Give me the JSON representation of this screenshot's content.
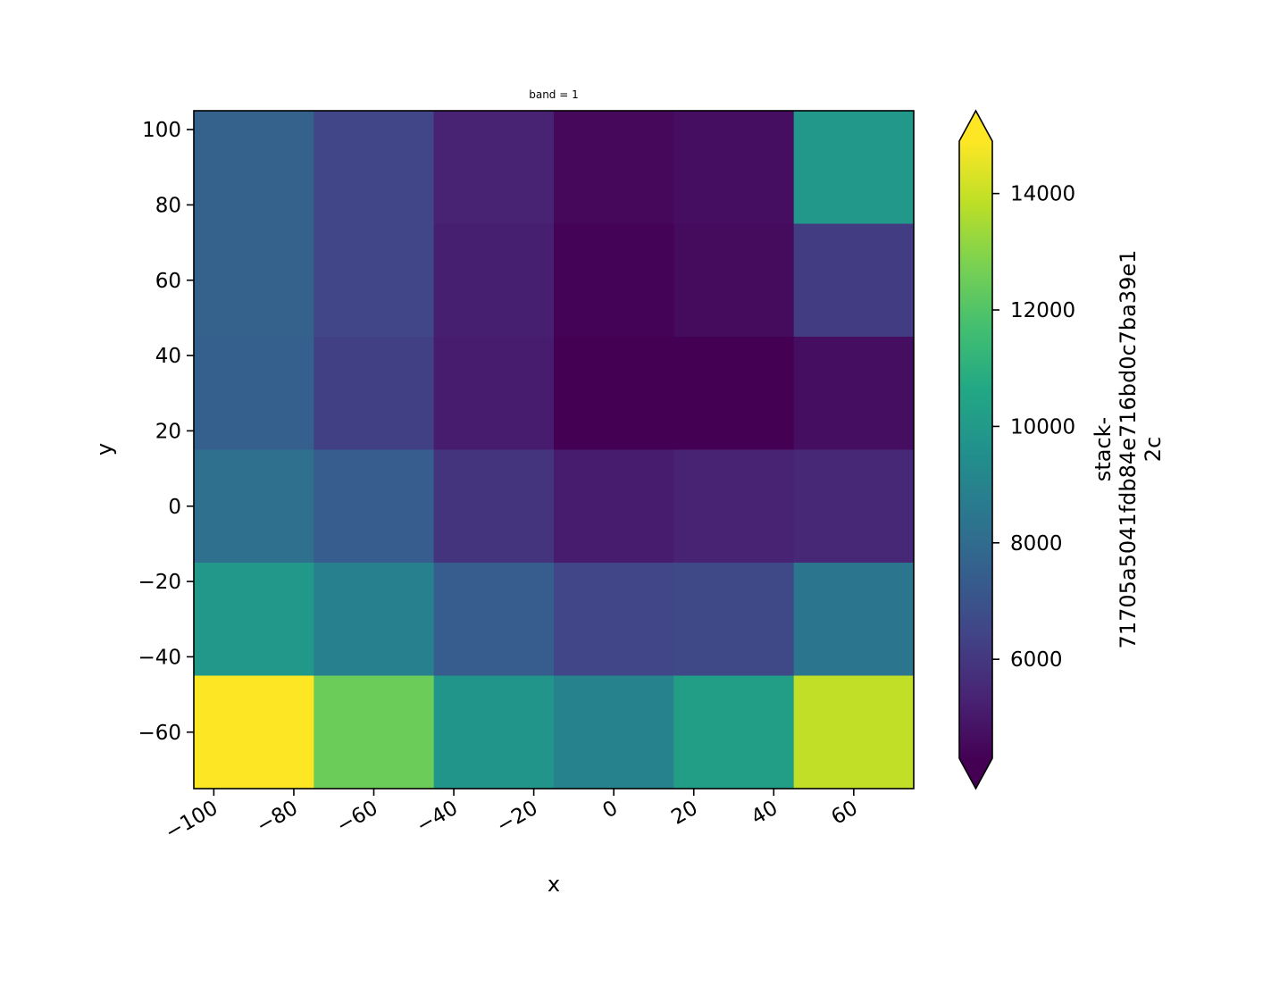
{
  "chart_data": {
    "type": "heatmap",
    "title": "band = 1",
    "xlabel": "x",
    "ylabel": "y",
    "x_centers": [
      -90,
      -60,
      -30,
      0,
      30,
      60
    ],
    "y_centers": [
      90,
      60,
      30,
      0,
      -30,
      -60
    ],
    "xlim": [
      -105,
      75
    ],
    "ylim": [
      -75,
      105
    ],
    "x_ticks": [
      -100,
      -80,
      -60,
      -40,
      -20,
      0,
      20,
      40,
      60
    ],
    "y_ticks": [
      100,
      80,
      60,
      40,
      20,
      0,
      -20,
      -40,
      -60
    ],
    "x_tick_labels": [
      "−100",
      "−80",
      "−60",
      "−40",
      "−20",
      "0",
      "20",
      "40",
      "60"
    ],
    "y_tick_labels": [
      "100",
      "80",
      "60",
      "40",
      "20",
      "0",
      "−20",
      "−40",
      "−60"
    ],
    "values": [
      [
        7600,
        6500,
        5300,
        4500,
        4700,
        9900
      ],
      [
        7600,
        6500,
        5200,
        4350,
        4600,
        6200
      ],
      [
        7500,
        6300,
        5100,
        4300,
        4300,
        4700
      ],
      [
        8200,
        7400,
        5900,
        5100,
        5300,
        5500
      ],
      [
        9900,
        8900,
        7400,
        6500,
        6600,
        8400
      ],
      [
        14900,
        12500,
        9800,
        9000,
        10200,
        13900
      ]
    ],
    "colormap": "viridis",
    "colorbar": {
      "vmin": 4300,
      "vmax": 14900,
      "extend": "both",
      "ticks": [
        6000,
        8000,
        10000,
        12000,
        14000
      ],
      "label_lines": [
        "stack-",
        "71705a5041fdb84e716bd0c7ba39e1",
        "2c"
      ]
    },
    "grid": false
  }
}
